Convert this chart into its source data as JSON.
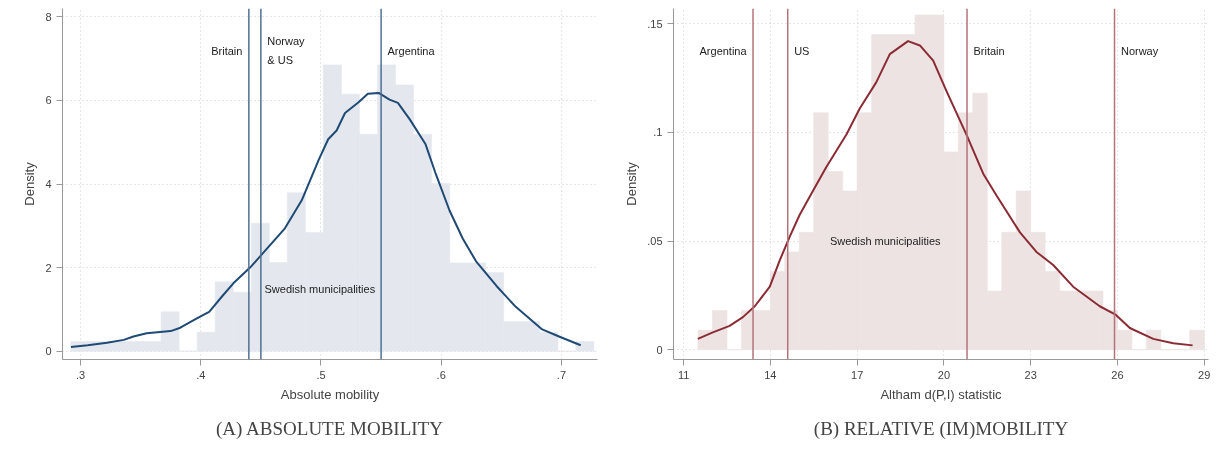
{
  "chart_data": [
    {
      "type": "histogram",
      "title": "(A) ABSOLUTE MOBILITY",
      "xlabel": "Absolute mobility",
      "ylabel": "Density",
      "color": "#e4e8ee",
      "bins": [
        0.292,
        0.307,
        0.322,
        0.337,
        0.352,
        0.367,
        0.382,
        0.397,
        0.412,
        0.427,
        0.442,
        0.457,
        0.472,
        0.487,
        0.502,
        0.517,
        0.532,
        0.547,
        0.562,
        0.577,
        0.592,
        0.607,
        0.622,
        0.637,
        0.652,
        0.667,
        0.682,
        0.697,
        0.712,
        0.727
      ],
      "values": [
        0.23,
        0.23,
        0.23,
        0.23,
        0.23,
        0.94,
        0,
        0.45,
        1.66,
        1.41,
        3.06,
        2.12,
        3.79,
        2.84,
        6.85,
        6.15,
        5.19,
        6.85,
        6.37,
        5.19,
        4.01,
        2.11,
        2.11,
        1.88,
        0.71,
        0.71,
        0.45,
        0,
        0.23
      ],
      "series": [
        {
          "type": "line",
          "color": "#1f4a75",
          "x": [
            0.292,
            0.306,
            0.322,
            0.336,
            0.344,
            0.355,
            0.375,
            0.383,
            0.396,
            0.407,
            0.418,
            0.428,
            0.441,
            0.451,
            0.47,
            0.484,
            0.498,
            0.506,
            0.513,
            0.52,
            0.531,
            0.539,
            0.548,
            0.557,
            0.564,
            0.574,
            0.587,
            0.595,
            0.607,
            0.618,
            0.629,
            0.646,
            0.662,
            0.684,
            0.698,
            0.716
          ],
          "values": [
            0.1,
            0.14,
            0.2,
            0.27,
            0.35,
            0.43,
            0.48,
            0.56,
            0.77,
            0.94,
            1.32,
            1.65,
            2.0,
            2.32,
            2.94,
            3.61,
            4.57,
            5.07,
            5.28,
            5.7,
            5.95,
            6.16,
            6.18,
            6.02,
            5.94,
            5.54,
            4.95,
            4.28,
            3.36,
            2.69,
            2.15,
            1.56,
            1.06,
            0.52,
            0.35,
            0.14
          ]
        }
      ],
      "ref_lines": [
        {
          "axis": "x",
          "value": 0.44,
          "color": "#4f7193",
          "label": "Britain"
        },
        {
          "axis": "x",
          "value": 0.45,
          "color": "#4f7193",
          "label": "Norway\n& US"
        },
        {
          "axis": "x",
          "value": 0.55,
          "color": "#4f7193",
          "label": "Argentina"
        }
      ],
      "annotations": [
        {
          "text": "Swedish municipalities",
          "x": 0.453,
          "y": 1.48
        }
      ],
      "xlim": [
        0.285,
        0.73
      ],
      "ylim": [
        -0.2,
        8.2
      ],
      "xticks": [
        {
          "value": 0.3,
          "label": ".3"
        },
        {
          "value": 0.4,
          "label": ".4"
        },
        {
          "value": 0.5,
          "label": ".5"
        },
        {
          "value": 0.6,
          "label": ".6"
        },
        {
          "value": 0.7,
          "label": ".7"
        }
      ],
      "yticks": [
        0,
        2,
        4,
        6,
        8
      ],
      "grid": true
    },
    {
      "type": "histogram",
      "title": "(B) RELATIVE (IM)MOBILITY",
      "xlabel": "Altham d(P,I) statistic",
      "ylabel": "Density",
      "color": "#ede3e3",
      "bins": [
        11.5,
        12,
        12.5,
        13,
        13.5,
        14,
        14.5,
        15,
        15.5,
        16,
        16.5,
        17,
        17.5,
        18,
        18.5,
        19,
        19.5,
        20,
        20.5,
        21,
        21.5,
        22,
        22.5,
        23,
        23.5,
        24,
        24.5,
        25,
        25.5,
        26,
        26.5,
        27,
        27.5,
        28,
        28.5,
        29
      ],
      "values": [
        0.009,
        0.018,
        0,
        0.018,
        0.018,
        0.036,
        0.045,
        0.054,
        0.109,
        0.082,
        0.073,
        0.109,
        0.145,
        0.145,
        0.145,
        0.154,
        0.154,
        0.091,
        0.109,
        0.118,
        0.027,
        0.054,
        0.073,
        0.054,
        0.036,
        0.027,
        0.027,
        0.027,
        0.018,
        0.009,
        0,
        0.009,
        0,
        0,
        0.009
      ],
      "series": [
        {
          "type": "line",
          "color": "#8b2c35",
          "x": [
            11.49,
            12.01,
            12.59,
            13.05,
            13.46,
            13.98,
            14.32,
            14.67,
            15.01,
            15.47,
            15.93,
            16.63,
            17.09,
            17.66,
            18.13,
            18.76,
            19.17,
            19.63,
            20.09,
            20.78,
            21.36,
            21.82,
            22.63,
            23.2,
            23.78,
            24.47,
            25.39,
            25.95,
            26.43,
            27.24,
            27.93,
            28.6
          ],
          "values": [
            0.005,
            0.008,
            0.011,
            0.015,
            0.02,
            0.029,
            0.041,
            0.052,
            0.062,
            0.073,
            0.084,
            0.099,
            0.111,
            0.123,
            0.136,
            0.142,
            0.14,
            0.133,
            0.119,
            0.099,
            0.081,
            0.071,
            0.054,
            0.045,
            0.039,
            0.029,
            0.02,
            0.016,
            0.01,
            0.005,
            0.003,
            0.002
          ]
        }
      ],
      "ref_lines": [
        {
          "axis": "x",
          "value": 13.4,
          "color": "#b5737a",
          "label": "Argentina"
        },
        {
          "axis": "x",
          "value": 14.6,
          "color": "#b5737a",
          "label": "US"
        },
        {
          "axis": "x",
          "value": 20.8,
          "color": "#b5737a",
          "label": "Britain"
        },
        {
          "axis": "x",
          "value": 25.9,
          "color": "#b5737a",
          "label": "Norway"
        }
      ],
      "annotations": [
        {
          "text": "Swedish municipalities",
          "x": 16.06,
          "y": 0.05
        }
      ],
      "xlim": [
        10.65,
        29.15
      ],
      "ylim": [
        -0.0045,
        0.157
      ],
      "xticks": [
        11,
        14,
        17,
        20,
        23,
        26,
        29
      ],
      "yticks": [
        0,
        {
          "value": 0.05,
          "label": ".05"
        },
        {
          "value": 0.1,
          "label": ".1"
        },
        {
          "value": 0.15,
          "label": ".15"
        }
      ],
      "grid": true
    }
  ]
}
